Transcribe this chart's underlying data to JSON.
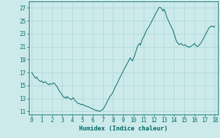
{
  "title": "",
  "xlabel": "Humidex (Indice chaleur)",
  "ylabel": "",
  "background_color": "#cceaea",
  "grid_color": "#aad4d4",
  "line_color": "#006666",
  "xlim": [
    -0.3,
    18.3
  ],
  "ylim": [
    10.5,
    28.0
  ],
  "xticks": [
    0,
    1,
    2,
    3,
    4,
    5,
    6,
    7,
    8,
    9,
    10,
    11,
    12,
    13,
    14,
    15,
    16,
    17,
    18
  ],
  "yticks": [
    11,
    13,
    15,
    17,
    19,
    21,
    23,
    25,
    27
  ],
  "x": [
    0.0,
    0.1,
    0.2,
    0.3,
    0.4,
    0.5,
    0.6,
    0.7,
    0.8,
    0.9,
    1.0,
    1.1,
    1.2,
    1.3,
    1.4,
    1.5,
    1.6,
    1.7,
    1.8,
    1.9,
    2.0,
    2.1,
    2.2,
    2.3,
    2.4,
    2.5,
    2.6,
    2.7,
    2.8,
    2.9,
    3.0,
    3.1,
    3.2,
    3.3,
    3.4,
    3.5,
    3.6,
    3.7,
    3.8,
    3.9,
    4.0,
    4.1,
    4.2,
    4.3,
    4.4,
    4.5,
    4.6,
    4.7,
    4.8,
    4.9,
    5.0,
    5.1,
    5.2,
    5.3,
    5.4,
    5.5,
    5.6,
    5.7,
    5.8,
    5.9,
    6.0,
    6.1,
    6.2,
    6.3,
    6.4,
    6.5,
    6.6,
    6.7,
    6.8,
    6.9,
    7.0,
    7.1,
    7.2,
    7.3,
    7.4,
    7.5,
    7.6,
    7.7,
    7.8,
    7.9,
    8.0,
    8.1,
    8.2,
    8.3,
    8.4,
    8.5,
    8.6,
    8.7,
    8.8,
    8.9,
    9.0,
    9.1,
    9.2,
    9.3,
    9.4,
    9.5,
    9.6,
    9.7,
    9.8,
    9.9,
    10.0,
    10.1,
    10.2,
    10.3,
    10.4,
    10.5,
    10.6,
    10.7,
    10.8,
    10.9,
    11.0,
    11.1,
    11.2,
    11.3,
    11.4,
    11.5,
    11.6,
    11.7,
    11.8,
    11.9,
    12.0,
    12.1,
    12.2,
    12.3,
    12.4,
    12.5,
    12.6,
    12.7,
    12.8,
    12.9,
    13.0,
    13.1,
    13.2,
    13.3,
    13.4,
    13.5,
    13.6,
    13.7,
    13.8,
    13.9,
    14.0,
    14.1,
    14.2,
    14.3,
    14.4,
    14.5,
    14.6,
    14.7,
    14.8,
    14.9,
    15.0,
    15.1,
    15.2,
    15.3,
    15.4,
    15.5,
    15.6,
    15.7,
    15.8,
    15.9,
    16.0,
    16.1,
    16.2,
    16.3,
    16.4,
    16.5,
    16.6,
    16.7,
    16.8,
    16.9,
    17.0,
    17.1,
    17.2,
    17.3,
    17.4,
    17.5,
    17.6,
    17.7,
    17.8,
    17.9,
    18.0
  ],
  "y": [
    17.0,
    16.8,
    16.5,
    16.3,
    16.1,
    16.3,
    16.0,
    15.8,
    15.7,
    15.6,
    15.7,
    15.5,
    15.4,
    15.6,
    15.5,
    15.3,
    15.2,
    15.1,
    15.3,
    15.2,
    15.2,
    15.3,
    15.4,
    15.2,
    15.0,
    14.8,
    14.5,
    14.2,
    14.0,
    13.8,
    13.5,
    13.3,
    13.1,
    13.2,
    13.0,
    13.3,
    13.1,
    13.0,
    12.9,
    12.8,
    13.0,
    13.1,
    12.8,
    12.6,
    12.5,
    12.3,
    12.2,
    12.2,
    12.1,
    12.0,
    12.1,
    12.0,
    11.9,
    11.8,
    11.8,
    11.7,
    11.7,
    11.6,
    11.5,
    11.4,
    11.4,
    11.3,
    11.2,
    11.2,
    11.1,
    11.1,
    11.0,
    11.0,
    11.1,
    11.2,
    11.3,
    11.5,
    11.8,
    12.1,
    12.4,
    12.7,
    13.0,
    13.3,
    13.5,
    13.7,
    14.0,
    14.3,
    14.7,
    15.0,
    15.3,
    15.6,
    16.0,
    16.3,
    16.6,
    16.9,
    17.2,
    17.5,
    17.8,
    18.1,
    18.4,
    18.7,
    19.0,
    19.3,
    19.0,
    18.8,
    19.2,
    19.5,
    20.0,
    20.5,
    21.0,
    21.3,
    21.5,
    21.2,
    21.8,
    22.2,
    22.5,
    22.8,
    23.2,
    23.5,
    23.8,
    24.0,
    24.3,
    24.6,
    24.9,
    25.2,
    25.5,
    25.8,
    26.1,
    26.4,
    26.7,
    27.0,
    27.1,
    27.0,
    26.8,
    26.5,
    26.8,
    26.5,
    26.0,
    25.5,
    25.2,
    24.8,
    24.5,
    24.2,
    23.8,
    23.5,
    23.0,
    22.5,
    22.0,
    21.7,
    21.5,
    21.3,
    21.4,
    21.5,
    21.3,
    21.2,
    21.2,
    21.3,
    21.1,
    21.0,
    21.0,
    20.9,
    21.0,
    21.1,
    21.2,
    21.3,
    21.5,
    21.3,
    21.1,
    21.0,
    21.1,
    21.3,
    21.5,
    21.7,
    22.0,
    22.3,
    22.6,
    22.9,
    23.2,
    23.5,
    23.8,
    24.0,
    24.1,
    24.2,
    24.1,
    24.0,
    24.2
  ]
}
